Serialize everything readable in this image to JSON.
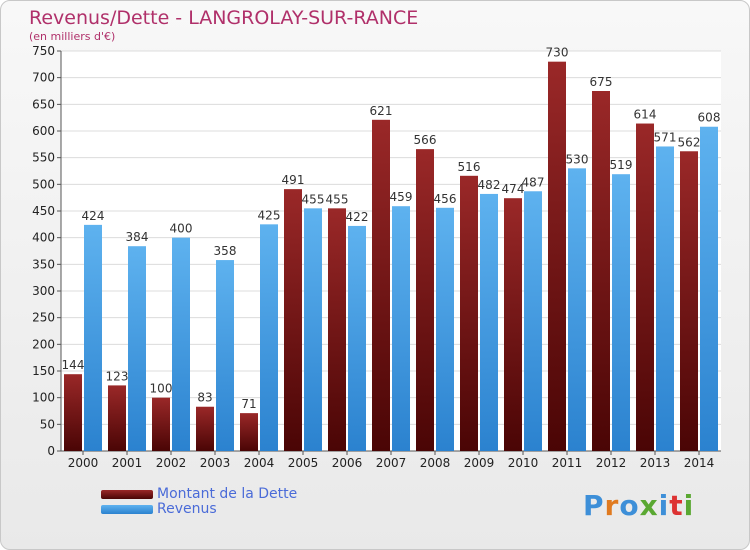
{
  "title": "Revenus/Dette - LANGROLAY-SUR-RANCE",
  "subtitle": "(en milliers d'€)",
  "logo": {
    "text": "Proxiti",
    "colors": [
      "#3d8fd8",
      "#e07a1f",
      "#3d8fd8",
      "#5aa832",
      "#3d8fd8",
      "#d33",
      "#5aa832"
    ]
  },
  "chart_data": {
    "type": "bar",
    "categories": [
      "2000",
      "2001",
      "2002",
      "2003",
      "2004",
      "2005",
      "2006",
      "2007",
      "2008",
      "2009",
      "2010",
      "2011",
      "2012",
      "2013",
      "2014"
    ],
    "series": [
      {
        "name": "Montant de la Dette",
        "color": "#7a1a1a",
        "values": [
          144,
          123,
          100,
          83,
          71,
          491,
          455,
          621,
          566,
          516,
          474,
          730,
          675,
          614,
          562
        ]
      },
      {
        "name": "Revenus",
        "color": "#3e9ae0",
        "values": [
          424,
          384,
          400,
          358,
          425,
          455,
          422,
          459,
          456,
          482,
          487,
          530,
          519,
          571,
          608
        ]
      }
    ],
    "yticks": [
      "0",
      "50",
      "100",
      "150",
      "200",
      "250",
      "300",
      "350",
      "400",
      "450",
      "500",
      "550",
      "600",
      "650",
      "700",
      "750"
    ],
    "ylim": [
      0,
      750
    ],
    "grid": true,
    "legend": "bottom-left"
  }
}
